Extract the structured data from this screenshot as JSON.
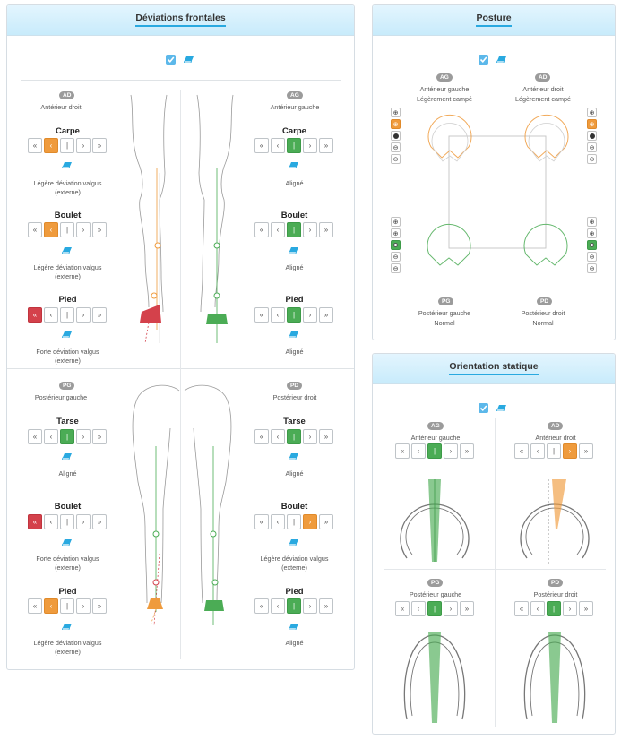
{
  "frontal": {
    "title": "Déviations frontales",
    "front": {
      "left": {
        "badge": "AD",
        "name": "Antérieur droit",
        "carpe": {
          "title": "Carpe",
          "value": "Légère déviation valgus (externe)"
        },
        "boulet": {
          "title": "Boulet",
          "value": "Légère déviation valgus (externe)"
        },
        "pied": {
          "title": "Pied",
          "value": "Forte déviation valgus (externe)"
        }
      },
      "right": {
        "badge": "AG",
        "name": "Antérieur gauche",
        "carpe": {
          "title": "Carpe",
          "value": "Aligné"
        },
        "boulet": {
          "title": "Boulet",
          "value": "Aligné"
        },
        "pied": {
          "title": "Pied",
          "value": "Aligné"
        }
      }
    },
    "hind": {
      "left": {
        "badge": "PG",
        "name": "Postérieur gauche",
        "tarse": {
          "title": "Tarse",
          "value": "Aligné"
        },
        "boulet": {
          "title": "Boulet",
          "value": "Forte déviation valgus (externe)"
        },
        "pied": {
          "title": "Pied",
          "value": "Légère déviation valgus (externe)"
        }
      },
      "right": {
        "badge": "PD",
        "name": "Postérieur droit",
        "tarse": {
          "title": "Tarse",
          "value": "Aligné"
        },
        "boulet": {
          "title": "Boulet",
          "value": "Légère déviation valgus (externe)"
        },
        "pied": {
          "title": "Pied",
          "value": "Aligné"
        }
      }
    },
    "button_glyphs": [
      "«",
      "‹",
      "|",
      "›",
      "»"
    ]
  },
  "posture": {
    "title": "Posture",
    "ag": {
      "badge": "AG",
      "name": "Antérieur gauche",
      "value": "Légèrement campé"
    },
    "ad": {
      "badge": "AD",
      "name": "Antérieur droit",
      "value": "Légèrement campé"
    },
    "pg": {
      "badge": "PG",
      "name": "Postérieur gauche",
      "value": "Normal"
    },
    "pd": {
      "badge": "PD",
      "name": "Postérieur droit",
      "value": "Normal"
    }
  },
  "orientation": {
    "title": "Orientation statique",
    "ag": {
      "badge": "AG",
      "name": "Antérieur gauche"
    },
    "ad": {
      "badge": "AD",
      "name": "Antérieur droit"
    },
    "pg": {
      "badge": "PG",
      "name": "Postérieur gauche"
    },
    "pd": {
      "badge": "PD",
      "name": "Postérieur droit"
    }
  },
  "colors": {
    "accent": "#29a9e0",
    "warning": "#ef9b3d",
    "ok": "#4bac55",
    "danger": "#d4414b"
  }
}
